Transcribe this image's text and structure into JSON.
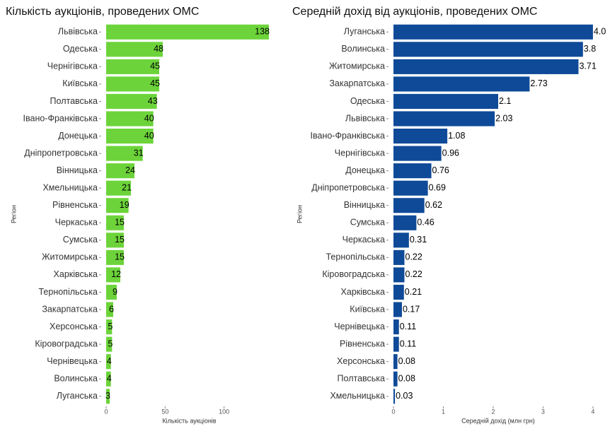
{
  "chart_data": [
    {
      "type": "bar",
      "orientation": "horizontal",
      "title": "Кількість аукціонів, проведених ОМС",
      "x_label": "Кількість аукціонів",
      "y_label": "Регіон",
      "categories": [
        "Львівська",
        "Одеська",
        "Чернігівська",
        "Київська",
        "Полтавська",
        "Івано-Франківська",
        "Донецька",
        "Дніпропетровська",
        "Вінницька",
        "Хмельницька",
        "Рівненська",
        "Черкаська",
        "Сумська",
        "Житомирська",
        "Харківська",
        "Тернопільська",
        "Закарпатська",
        "Херсонська",
        "Кіровоградська",
        "Чернівецька",
        "Волинська",
        "Луганська"
      ],
      "values": [
        138,
        48,
        45,
        45,
        43,
        40,
        40,
        31,
        24,
        21,
        19,
        15,
        15,
        15,
        12,
        9,
        6,
        5,
        5,
        4,
        4,
        3
      ],
      "color": "#6cd43a",
      "xlim": [
        0,
        141
      ],
      "xticks": [
        0,
        50,
        100
      ],
      "grid": false
    },
    {
      "type": "bar",
      "orientation": "horizontal",
      "title": "Середній дохід від аукціонів, проведених ОМС",
      "x_label": "Середній дохід (млн грн)",
      "y_label": "Регіон",
      "categories": [
        "Луганська",
        "Волинська",
        "Житомирська",
        "Закарпатська",
        "Одеська",
        "Львівська",
        "Івано-Франківська",
        "Чернігівська",
        "Донецька",
        "Дніпропетровська",
        "Вінницька",
        "Сумська",
        "Черкаська",
        "Тернопільська",
        "Кіровоградська",
        "Харківська",
        "Київська",
        "Чернівецька",
        "Рівненська",
        "Херсонська",
        "Полтавська",
        "Хмельницька"
      ],
      "values": [
        4.0,
        3.8,
        3.71,
        2.73,
        2.1,
        2.03,
        1.08,
        0.96,
        0.76,
        0.69,
        0.62,
        0.46,
        0.31,
        0.22,
        0.22,
        0.21,
        0.17,
        0.11,
        0.11,
        0.08,
        0.08,
        0.03
      ],
      "value_labels": [
        "4.0",
        "3.8",
        "3.71",
        "2.73",
        "2.1",
        "2.03",
        "1.08",
        "0.96",
        "0.76",
        "0.69",
        "0.62",
        "0.46",
        "0.31",
        "0.22",
        "0.22",
        "0.21",
        "0.17",
        "0.11",
        "0.11",
        "0.08",
        "0.08",
        "0.03"
      ],
      "color": "#0f4a98",
      "xlim": [
        0,
        4.2
      ],
      "xticks": [
        0,
        1,
        2,
        3,
        4
      ],
      "grid": false
    }
  ]
}
